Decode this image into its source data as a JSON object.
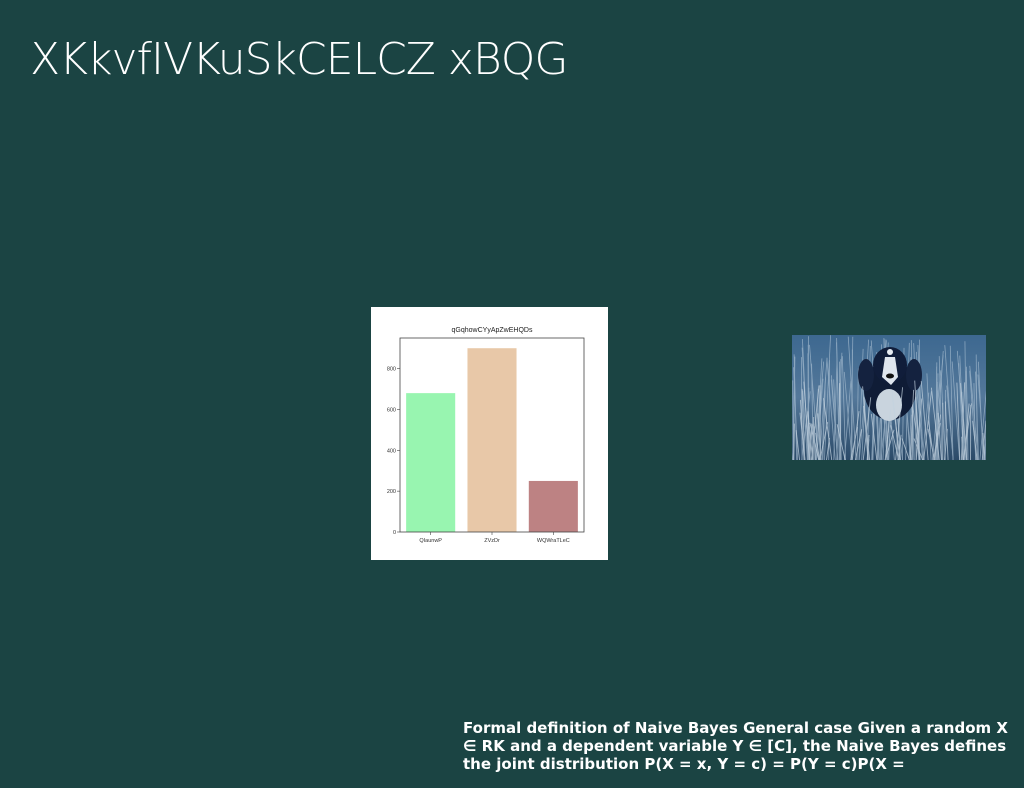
{
  "slide": {
    "title": "XKkvfIVKuSkCELCZ xBQG",
    "body_text": "Formal definition of Naive Bayes General case Given a random X ∈ RK and a dependent variable Y ∈ [C], the Naive Bayes defines the joint distribution P(X = x, Y = c) = P(Y = c)P(X ="
  },
  "chart_data": {
    "type": "bar",
    "title": "qGqhowCYyApZwEHQDs",
    "categories": [
      "QIaunwP",
      "ZVzDr",
      "WQWraTLeC"
    ],
    "values": [
      680,
      900,
      250
    ],
    "colors": [
      "#98f5b0",
      "#e8c8a8",
      "#bd8283"
    ],
    "ylim": [
      0,
      950
    ],
    "yticks": [
      0,
      200,
      400,
      600,
      800
    ],
    "xlabel": "",
    "ylabel": "",
    "grid": false
  },
  "photo": {
    "subject": "dog-in-grass-photo"
  }
}
